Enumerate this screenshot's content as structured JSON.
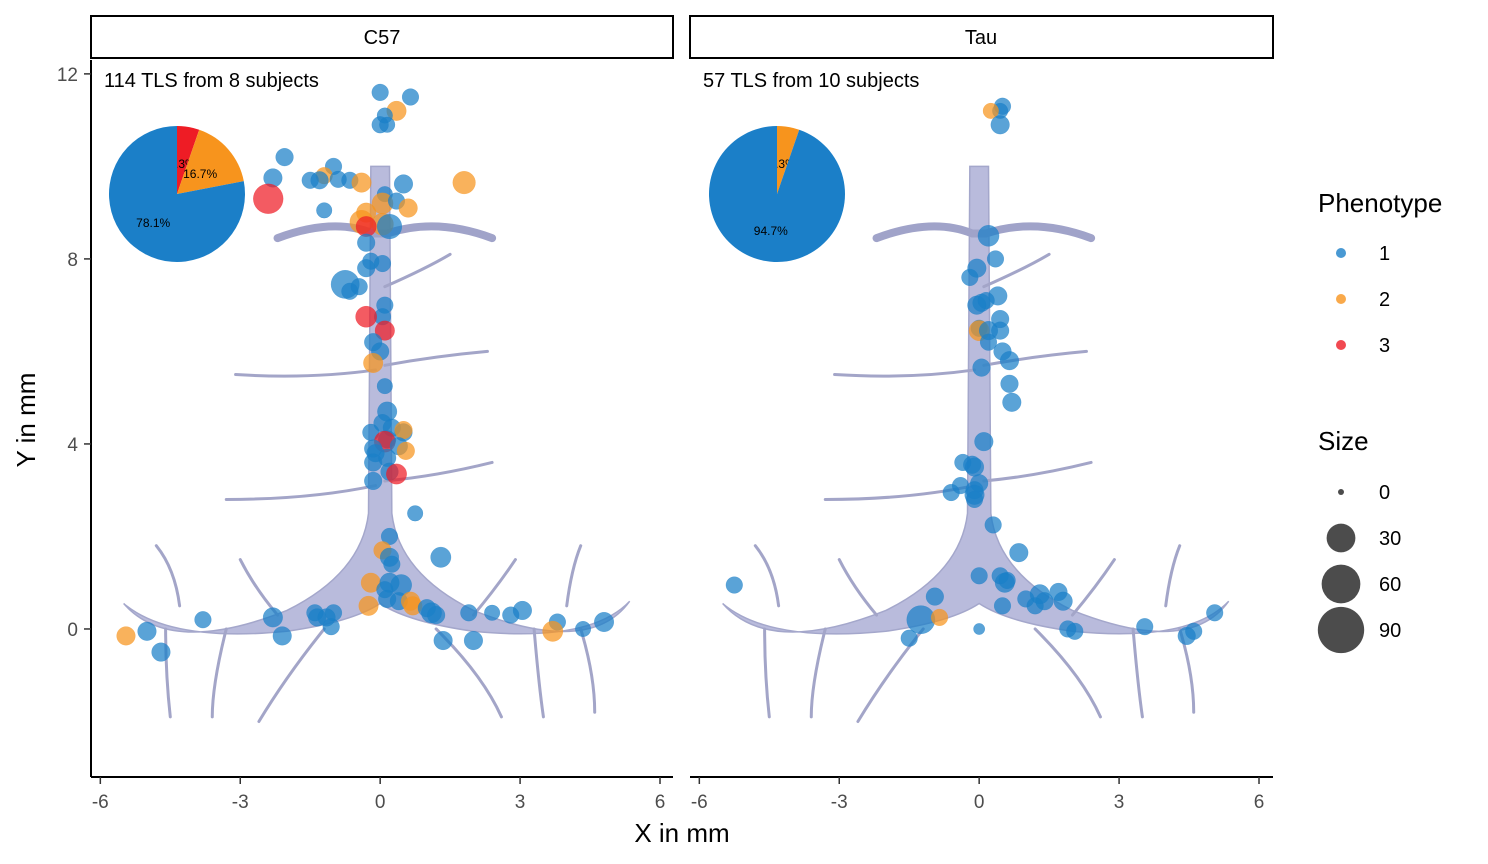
{
  "chart_data": {
    "type": "scatter",
    "xlabel": "X in mm",
    "ylabel": "Y in mm",
    "xlim": [
      -6.2,
      6.3
    ],
    "ylim": [
      -3.2,
      12.3
    ],
    "xticks": [
      -6,
      -3,
      0,
      3,
      6
    ],
    "xtick_labels": [
      "-6",
      "-3",
      "0",
      "3",
      "6"
    ],
    "yticks": [
      0,
      4,
      8,
      12
    ],
    "ytick_labels": [
      "0",
      "4",
      "8",
      "12"
    ],
    "grid": false,
    "phenotype_colors": {
      "1": "#1b7fc8",
      "2": "#f7941d",
      "3": "#ee1c25"
    },
    "legend": {
      "phenotype": {
        "title": "Phenotype",
        "items": [
          "1",
          "2",
          "3"
        ]
      },
      "size": {
        "title": "Size",
        "items": [
          0,
          30,
          60,
          90
        ]
      }
    },
    "panels": [
      {
        "name": "C57",
        "annotation": "114 TLS from 8 subjects",
        "pie": [
          {
            "phenotype": "1",
            "pct": 78.1,
            "label": "78.1%"
          },
          {
            "phenotype": "2",
            "pct": 16.7,
            "label": "16.7%"
          },
          {
            "phenotype": "3",
            "pct": 5.3,
            "label": "5.3%"
          }
        ],
        "points": [
          [
            0,
            11.6,
            1,
            12
          ],
          [
            0.65,
            11.5,
            1,
            12
          ],
          [
            0.35,
            11.2,
            2,
            18
          ],
          [
            0.1,
            11.1,
            1,
            10
          ],
          [
            0,
            10.9,
            1,
            12
          ],
          [
            0.15,
            10.9,
            1,
            10
          ],
          [
            -2.05,
            10.2,
            1,
            14
          ],
          [
            -1.0,
            10.0,
            1,
            12
          ],
          [
            -1.2,
            9.8,
            2,
            12
          ],
          [
            -2.3,
            9.75,
            1,
            16
          ],
          [
            -1.5,
            9.7,
            1,
            12
          ],
          [
            -1.3,
            9.7,
            1,
            14
          ],
          [
            -0.9,
            9.72,
            1,
            12
          ],
          [
            -0.65,
            9.7,
            1,
            12
          ],
          [
            -0.4,
            9.65,
            2,
            18
          ],
          [
            0.5,
            9.62,
            1,
            16
          ],
          [
            1.8,
            9.65,
            2,
            26
          ],
          [
            0.1,
            9.4,
            1,
            10
          ],
          [
            -2.4,
            9.3,
            3,
            50
          ],
          [
            0.05,
            9.2,
            2,
            22
          ],
          [
            0.35,
            9.25,
            1,
            12
          ],
          [
            0.6,
            9.1,
            2,
            16
          ],
          [
            -1.2,
            9.05,
            1,
            10
          ],
          [
            -0.3,
            9.0,
            2,
            18
          ],
          [
            -0.4,
            8.8,
            2,
            28
          ],
          [
            0.05,
            8.75,
            2,
            24
          ],
          [
            0.2,
            8.7,
            1,
            32
          ],
          [
            -0.3,
            8.7,
            3,
            20
          ],
          [
            -0.3,
            8.35,
            1,
            14
          ],
          [
            -0.2,
            7.95,
            1,
            12
          ],
          [
            -0.3,
            7.8,
            1,
            14
          ],
          [
            0.05,
            7.9,
            1,
            12
          ],
          [
            -0.75,
            7.45,
            1,
            44
          ],
          [
            -0.65,
            7.3,
            1,
            12
          ],
          [
            -0.45,
            7.4,
            1,
            12
          ],
          [
            0.1,
            7.0,
            1,
            12
          ],
          [
            0.05,
            6.75,
            1,
            12
          ],
          [
            -0.3,
            6.75,
            3,
            22
          ],
          [
            0.1,
            6.45,
            3,
            18
          ],
          [
            -0.15,
            6.2,
            1,
            14
          ],
          [
            0.0,
            6.0,
            1,
            14
          ],
          [
            -0.15,
            5.75,
            2,
            18
          ],
          [
            0.1,
            5.25,
            1,
            10
          ],
          [
            0.15,
            4.7,
            1,
            18
          ],
          [
            0.05,
            4.45,
            1,
            14
          ],
          [
            0.25,
            4.35,
            1,
            14
          ],
          [
            0.5,
            4.25,
            1,
            14
          ],
          [
            0.5,
            4.3,
            2,
            14
          ],
          [
            -0.2,
            4.25,
            1,
            12
          ],
          [
            0.15,
            4.1,
            1,
            14
          ],
          [
            0.1,
            4.05,
            3,
            22
          ],
          [
            -0.15,
            3.9,
            1,
            14
          ],
          [
            0.4,
            3.95,
            1,
            14
          ],
          [
            0.55,
            3.85,
            2,
            14
          ],
          [
            -0.1,
            3.8,
            1,
            14
          ],
          [
            0.15,
            3.7,
            1,
            14
          ],
          [
            -0.15,
            3.6,
            1,
            14
          ],
          [
            0.2,
            3.4,
            1,
            14
          ],
          [
            0.35,
            3.35,
            3,
            20
          ],
          [
            -0.15,
            3.2,
            1,
            14
          ],
          [
            0.75,
            2.5,
            1,
            10
          ],
          [
            0.2,
            2.0,
            1,
            12
          ],
          [
            0.05,
            1.7,
            2,
            14
          ],
          [
            0.2,
            1.55,
            1,
            16
          ],
          [
            1.3,
            1.55,
            1,
            20
          ],
          [
            0.25,
            1.4,
            1,
            12
          ],
          [
            -0.2,
            1.0,
            2,
            18
          ],
          [
            0.2,
            1.0,
            1,
            18
          ],
          [
            0.45,
            0.95,
            1,
            22
          ],
          [
            0.1,
            0.85,
            1,
            12
          ],
          [
            0.4,
            0.6,
            1,
            14
          ],
          [
            0.65,
            0.6,
            2,
            16
          ],
          [
            -0.25,
            0.5,
            2,
            18
          ],
          [
            0.15,
            0.65,
            1,
            14
          ],
          [
            0.7,
            0.5,
            2,
            16
          ],
          [
            1.0,
            0.45,
            1,
            14
          ],
          [
            1.1,
            0.35,
            1,
            20
          ],
          [
            1.2,
            0.3,
            1,
            14
          ],
          [
            1.9,
            0.35,
            1,
            12
          ],
          [
            2.4,
            0.35,
            1,
            10
          ],
          [
            2.8,
            0.3,
            1,
            12
          ],
          [
            3.05,
            0.4,
            1,
            16
          ],
          [
            3.8,
            0.15,
            1,
            12
          ],
          [
            4.8,
            0.15,
            1,
            18
          ],
          [
            4.35,
            0.0,
            1,
            10
          ],
          [
            3.7,
            -0.05,
            2,
            20
          ],
          [
            -1.4,
            0.35,
            1,
            12
          ],
          [
            -1.35,
            0.25,
            1,
            14
          ],
          [
            -1.15,
            0.25,
            1,
            14
          ],
          [
            -1.0,
            0.35,
            1,
            12
          ],
          [
            -1.05,
            0.05,
            1,
            12
          ],
          [
            -2.3,
            0.25,
            1,
            18
          ],
          [
            -3.8,
            0.2,
            1,
            12
          ],
          [
            -2.1,
            -0.15,
            1,
            16
          ],
          [
            -5.0,
            -0.05,
            1,
            16
          ],
          [
            -5.45,
            -0.15,
            2,
            16
          ],
          [
            -4.7,
            -0.5,
            1,
            16
          ],
          [
            1.35,
            -0.25,
            1,
            16
          ],
          [
            2.0,
            -0.25,
            1,
            16
          ]
        ]
      },
      {
        "name": "Tau",
        "annotation": "57 TLS from 10 subjects",
        "pie": [
          {
            "phenotype": "1",
            "pct": 94.7,
            "label": "94.7%"
          },
          {
            "phenotype": "2",
            "pct": 5.3,
            "label": "5.3%"
          }
        ],
        "points": [
          [
            0.5,
            11.3,
            1,
            12
          ],
          [
            0.45,
            11.2,
            1,
            10
          ],
          [
            0.25,
            11.2,
            2,
            10
          ],
          [
            0.45,
            10.9,
            1,
            16
          ],
          [
            0.2,
            8.5,
            1,
            22
          ],
          [
            0.35,
            8.0,
            1,
            12
          ],
          [
            -0.05,
            7.8,
            1,
            16
          ],
          [
            -0.2,
            7.6,
            1,
            12
          ],
          [
            0.05,
            7.05,
            1,
            14
          ],
          [
            -0.05,
            7.0,
            1,
            16
          ],
          [
            0.4,
            7.2,
            1,
            16
          ],
          [
            0.15,
            7.1,
            1,
            12
          ],
          [
            0.45,
            6.7,
            1,
            14
          ],
          [
            0.0,
            6.5,
            1,
            12
          ],
          [
            0.0,
            6.45,
            2,
            20
          ],
          [
            0.2,
            6.45,
            1,
            16
          ],
          [
            0.45,
            6.45,
            1,
            14
          ],
          [
            0.2,
            6.2,
            1,
            12
          ],
          [
            0.5,
            6.0,
            1,
            14
          ],
          [
            0.65,
            5.8,
            1,
            16
          ],
          [
            0.05,
            5.65,
            1,
            14
          ],
          [
            0.65,
            5.3,
            1,
            14
          ],
          [
            0.7,
            4.9,
            1,
            16
          ],
          [
            0.1,
            4.05,
            1,
            16
          ],
          [
            -0.35,
            3.6,
            1,
            12
          ],
          [
            -0.15,
            3.55,
            1,
            14
          ],
          [
            -0.1,
            3.5,
            1,
            16
          ],
          [
            -0.4,
            3.1,
            1,
            12
          ],
          [
            -0.1,
            3.0,
            1,
            14
          ],
          [
            0.0,
            3.15,
            1,
            14
          ],
          [
            -0.1,
            2.9,
            1,
            18
          ],
          [
            -0.6,
            2.95,
            1,
            12
          ],
          [
            -0.1,
            2.8,
            1,
            12
          ],
          [
            0.3,
            2.25,
            1,
            12
          ],
          [
            0.85,
            1.65,
            1,
            16
          ],
          [
            0.0,
            1.15,
            1,
            12
          ],
          [
            0.45,
            1.15,
            1,
            12
          ],
          [
            0.55,
            1.0,
            1,
            18
          ],
          [
            0.6,
            1.05,
            1,
            12
          ],
          [
            -0.95,
            0.7,
            1,
            14
          ],
          [
            -1.25,
            0.2,
            1,
            44
          ],
          [
            -0.85,
            0.25,
            2,
            12
          ],
          [
            0.5,
            0.5,
            1,
            12
          ],
          [
            1.0,
            0.65,
            1,
            12
          ],
          [
            1.3,
            0.75,
            1,
            18
          ],
          [
            1.4,
            0.6,
            1,
            14
          ],
          [
            1.2,
            0.5,
            1,
            12
          ],
          [
            1.7,
            0.8,
            1,
            14
          ],
          [
            1.8,
            0.6,
            1,
            16
          ],
          [
            1.9,
            0.0,
            1,
            12
          ],
          [
            2.05,
            -0.05,
            1,
            12
          ],
          [
            3.55,
            0.05,
            1,
            12
          ],
          [
            4.6,
            -0.05,
            1,
            12
          ],
          [
            4.45,
            -0.15,
            1,
            14
          ],
          [
            5.05,
            0.35,
            1,
            12
          ],
          [
            -5.25,
            0.95,
            1,
            12
          ],
          [
            -1.5,
            -0.2,
            1,
            12
          ],
          [
            0.0,
            0.0,
            1,
            4
          ]
        ]
      }
    ]
  }
}
